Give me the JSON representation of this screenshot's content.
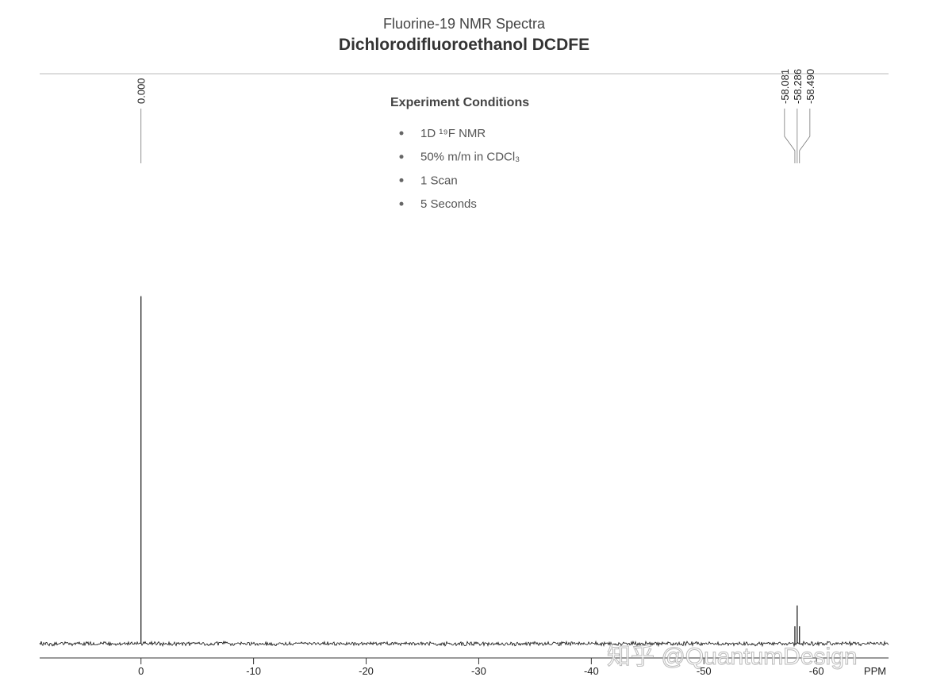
{
  "chart_data": {
    "type": "nmr",
    "title": "Fluorine-19 NMR Spectra",
    "subtitle": "Dichlorodifluoroethanol DCDFE",
    "annotation_title": "Experiment Conditions",
    "annotations": [
      "1D ¹⁹F NMR",
      "50% m/m in CDCl₃",
      "1 Scan",
      "5 Seconds"
    ],
    "x_label": "PPM",
    "x": [
      0,
      -58.081,
      -58.286,
      -58.49
    ],
    "x_labels": [
      "0.000",
      "-58.081",
      "-58.286",
      "-58.490"
    ],
    "values": [
      100,
      5,
      11,
      5
    ],
    "color": "#111111",
    "xlim": [
      9,
      -66.4
    ],
    "xticks": [
      0,
      -10,
      -20,
      -30,
      -40,
      -50,
      -60
    ],
    "ylim": [
      0,
      164
    ],
    "watermark": "知乎 @QuantumDesign"
  }
}
